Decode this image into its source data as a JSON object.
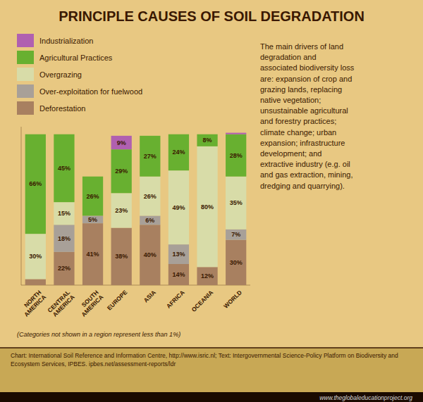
{
  "chart_data": {
    "type": "bar",
    "title": "PRINCIPLE CAUSES OF SOIL DEGRADATION",
    "categories": [
      "NORTH\nAMERICA",
      "CENTRAL\nAMERICA",
      "SOUTH\nAMERICA",
      "EUROPE",
      "ASIA",
      "AFRICA",
      "OCEANIA",
      "WORLD"
    ],
    "series": [
      {
        "name": "Deforestation",
        "color": "#a88060",
        "values": [
          4,
          22,
          41,
          38,
          40,
          14,
          12,
          30
        ],
        "value_labels": [
          null,
          "22%",
          "41%",
          "38%",
          "40%",
          "14%",
          "12%",
          "30%"
        ]
      },
      {
        "name": "Over-exploitation for fuelwood",
        "color": "#a8a098",
        "values": [
          0,
          18,
          5,
          0,
          6,
          13,
          0,
          7
        ],
        "value_labels": [
          null,
          "18%",
          "5%",
          null,
          "6%",
          "13%",
          null,
          "7%"
        ]
      },
      {
        "name": "Overgrazing",
        "color": "#d8dca8",
        "values": [
          30,
          15,
          0,
          23,
          26,
          49,
          80,
          35
        ],
        "value_labels": [
          "30%",
          "15%",
          null,
          "23%",
          "26%",
          "49%",
          "80%",
          "35%"
        ]
      },
      {
        "name": "Agricultural Practices",
        "color": "#68b030",
        "values": [
          66,
          45,
          26,
          29,
          27,
          24,
          8,
          28
        ],
        "value_labels": [
          "66%",
          "45%",
          "26%",
          "29%",
          "27%",
          "24%",
          "8%",
          "28%"
        ]
      },
      {
        "name": "Industrialization",
        "color": "#b060b0",
        "values": [
          0,
          0,
          0,
          9,
          0,
          0,
          0,
          1
        ],
        "value_labels": [
          null,
          null,
          null,
          "9%",
          null,
          null,
          null,
          null
        ]
      }
    ],
    "stacked": true,
    "data_labels": true,
    "ylim": [
      0,
      105
    ],
    "tick_labels": "x",
    "legend": "upper left",
    "annotations": [
      "(Categories not shown in a region represent less than 1%)",
      "The main drivers of land\ndegradation and\nassociated biodiversity loss\nare: expansion of crop and\ngrazing lands, replacing\nnative vegetation;\nunsustainable agricultural\nand forestry practices;\nclimate change; urban\nexpansion; infrastructure\ndevelopment; and\nextractive industry (e.g. oil\nand gas extraction, mining,\ndredging and quarrying).",
      "Chart: International  Soil Reference and Information Centre, http://www.isric.nl; Text: Intergovernmental Science-Policy Platform on Biodiversity and Ecosystem Services, IPBES. ipbes.net/assessment-reports/ldr",
      "www.theglobaleducationproject.org"
    ]
  }
}
